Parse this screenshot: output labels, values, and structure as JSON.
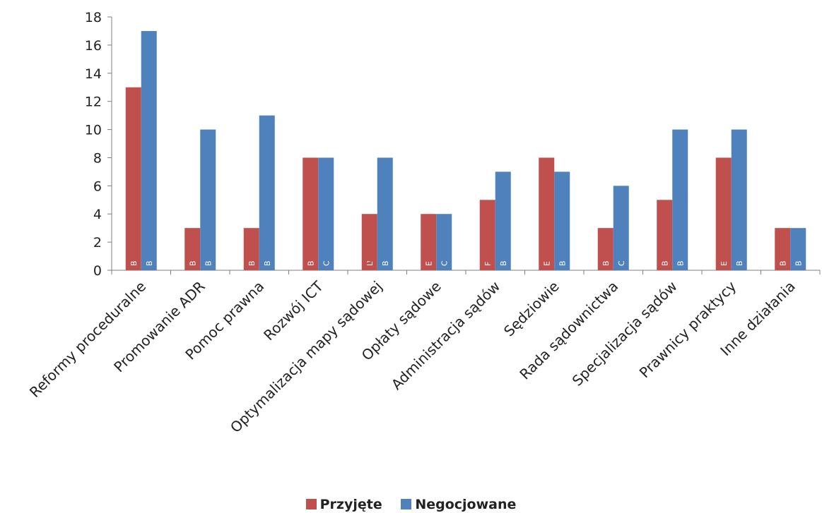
{
  "chart_data": {
    "type": "bar",
    "categories": [
      "Reformy proceduralne",
      "Promowanie ADR",
      "Pomoc prawna",
      "Rozwój ICT",
      "Optymalizacja mapy sądowej",
      "Opłaty sądowe",
      "Administracja sądów",
      "Sędziowie",
      "Rada sądownictwa",
      "Specjalizacja sądów",
      "Prawnicy praktycy",
      "Inne działania"
    ],
    "series": [
      {
        "name": "Przyjęte",
        "color": "#c0504d",
        "values": [
          13,
          3,
          3,
          8,
          4,
          4,
          5,
          8,
          3,
          5,
          8,
          3
        ],
        "labels": [
          "BE BG CZ IE EL FR HR IT LV MT RO SI",
          "BE CZ",
          "BE LV",
          "BE FR HR IT LT MT NL",
          "LV LT HU",
          "EL RO SI F",
          "FR IT LT RO F",
          "EE EL FR IT HU MT RO",
          "BG FR",
          "BE FR LV MT",
          "EL FR IT LV LT HU PT S",
          "BE BG"
        ]
      },
      {
        "name": "Negocjowane",
        "color": "#4f81bd",
        "values": [
          17,
          10,
          11,
          8,
          8,
          4,
          7,
          7,
          6,
          10,
          10,
          3
        ],
        "labels": [
          "BE BG CZ DK EL HR CY LV LT HU MT NL PT SI SK F",
          "BE EL HR IT LV LT MT NL SI F",
          "BE BG CZ DK EE EL LV LT HU SI",
          "CZ DK EE IE HR CY SK",
          "BE CZ HR IT LV PT SI F",
          "CZ CY LT",
          "BE CZ HR CY RO SI",
          "BE CZ DK IE HR RO",
          "CZ IE HR RO SI F",
          "BG IE HR IT CY HU NL PT SI S",
          "BE CZ DK EL HR LV HU NL SI",
          "BE HR"
        ]
      }
    ],
    "ylim": [
      0,
      18
    ],
    "yticks": [
      0,
      2,
      4,
      6,
      8,
      10,
      12,
      14,
      16,
      18
    ],
    "grid": false,
    "legend": "bottom"
  },
  "legend": {
    "items": [
      {
        "label": "Przyjęte",
        "color": "#c0504d"
      },
      {
        "label": "Negocjowane",
        "color": "#4f81bd"
      }
    ]
  }
}
